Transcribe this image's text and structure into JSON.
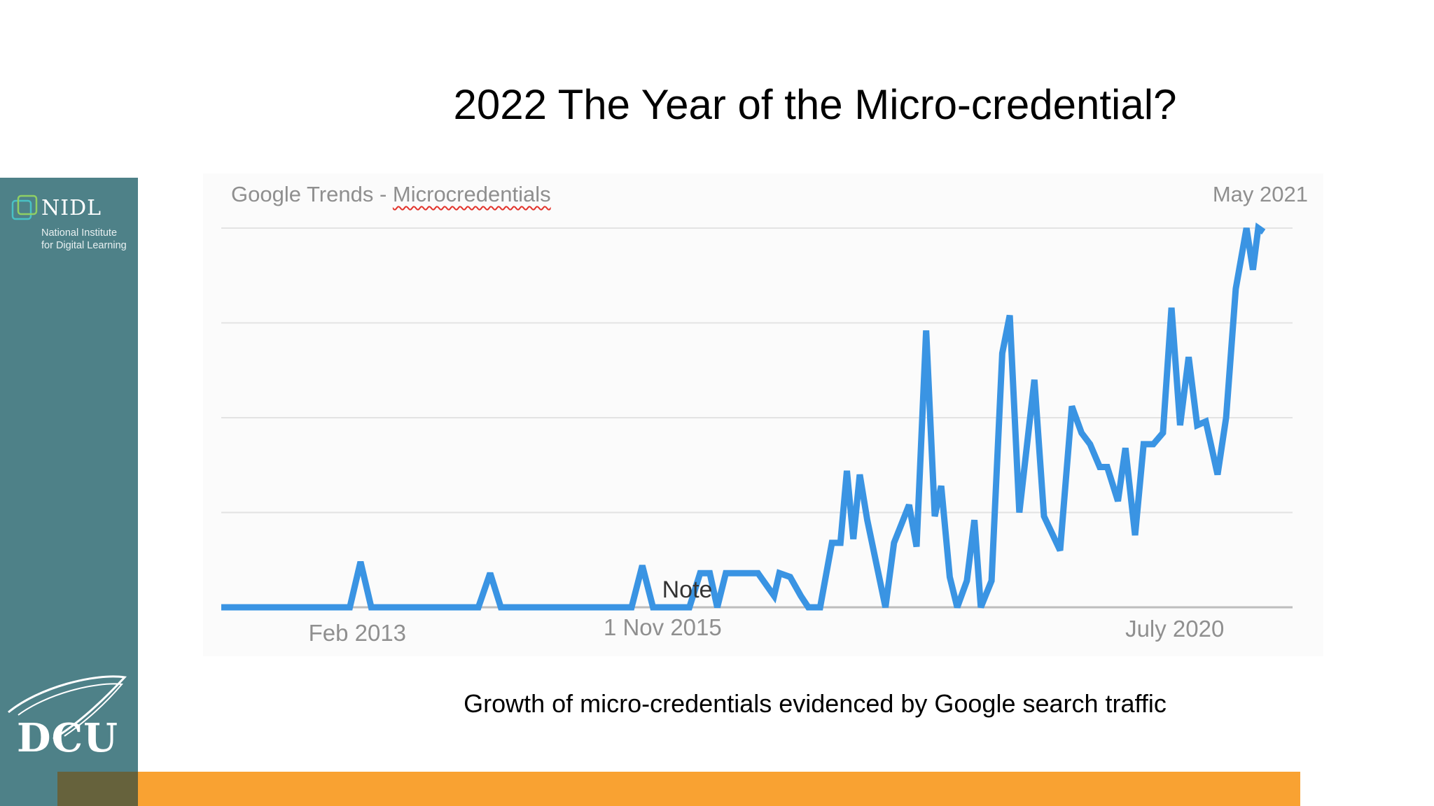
{
  "slide": {
    "title": "2022 The Year of the Micro-credential?",
    "caption": "Growth of micro-credentials evidenced by Google search traffic"
  },
  "sidebar": {
    "logo_name": "NIDL",
    "logo_subtitle": "National Institute\nfor Digital Learning",
    "university_logo": "DCU",
    "colors": {
      "background": "#4e8188",
      "bottom_bar": "#f9a232",
      "bottom_bar_dark": "#66623c"
    }
  },
  "chart_data": {
    "type": "line",
    "title": "Google Trends - Microcredentials",
    "title_parts": {
      "prefix": "Google Trends - ",
      "term": "Microcredentials"
    },
    "date_label": "May 2021",
    "xlabel": "",
    "ylabel": "",
    "x_ticks": [
      {
        "label": "Feb 2013",
        "x": 12.7
      },
      {
        "label": "1 Nov 2015",
        "x": 41.2
      },
      {
        "label": "July 2020",
        "x": 89.0
      }
    ],
    "annotation": {
      "label": "Note",
      "x": 43.5
    },
    "ylim": [
      0,
      100
    ],
    "xlim": [
      0,
      100
    ],
    "grid": true,
    "grid_lines": [
      0,
      25,
      50,
      75,
      100
    ],
    "line_color": "#3a94e3",
    "series": [
      {
        "x": [
          0,
          12.0,
          13.0,
          14.0,
          24.0,
          25.1,
          26.1,
          38.3,
          39.3,
          40.3,
          43.7,
          44.7,
          45.6,
          46.3,
          47.1,
          47.8,
          48.7,
          50.1,
          51.6,
          52.1,
          53.1,
          54.1,
          54.8,
          55.9,
          57.0,
          57.8,
          58.4,
          59.0,
          59.6,
          60.3,
          62.0,
          62.8,
          63.5,
          64.2,
          64.9,
          65.8,
          66.6,
          67.2,
          68.0,
          68.7,
          69.6,
          70.3,
          70.9,
          71.9,
          72.9,
          73.6,
          74.5,
          75.9,
          76.8,
          78.3,
          79.4,
          80.3,
          81.1,
          82.0,
          82.7,
          83.7,
          84.4,
          85.3,
          86.1,
          87.0,
          87.9,
          88.7,
          89.5,
          90.3,
          91.1,
          91.9,
          93.0,
          93.8,
          94.7,
          95.7,
          96.3,
          96.8,
          97.3
        ],
        "y": [
          0,
          0,
          12,
          0,
          0,
          9,
          0,
          0,
          11,
          0,
          0,
          9,
          9,
          0,
          9,
          9,
          9,
          9,
          3,
          9,
          8,
          3,
          0,
          0,
          17,
          17,
          36,
          18,
          35,
          23,
          0,
          17,
          22,
          27,
          16,
          73,
          24,
          32,
          8,
          0,
          7,
          23,
          0,
          7,
          67,
          77,
          25,
          60,
          24,
          15,
          53,
          46,
          43,
          37,
          37,
          28,
          42,
          19,
          43,
          43,
          46,
          79,
          48,
          66,
          48,
          49,
          35,
          50,
          84,
          100,
          89,
          100,
          99
        ]
      }
    ]
  }
}
